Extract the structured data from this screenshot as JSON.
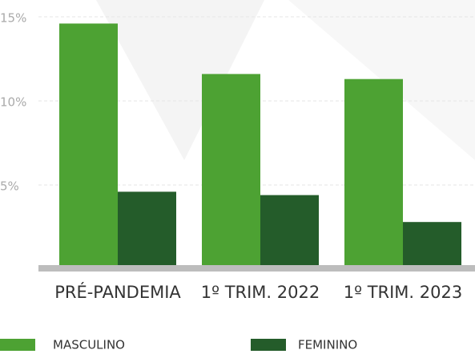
{
  "chart_data": {
    "type": "bar",
    "categories": [
      "PRÉ-PANDEMIA",
      "1º TRIM. 2022",
      "1º TRIM. 2023"
    ],
    "series": [
      {
        "name": "MASCULINO",
        "color": "#4da233",
        "values": [
          14.6,
          11.6,
          11.3
        ]
      },
      {
        "name": "FEMININO",
        "color": "#245c2a",
        "values": [
          4.6,
          4.4,
          2.8
        ]
      }
    ],
    "ylim": [
      0,
      16
    ],
    "yticks": [
      {
        "value": 5,
        "label": "5%"
      },
      {
        "value": 10,
        "label": "10%"
      },
      {
        "value": 15,
        "label": "15%"
      }
    ],
    "grid": true
  }
}
